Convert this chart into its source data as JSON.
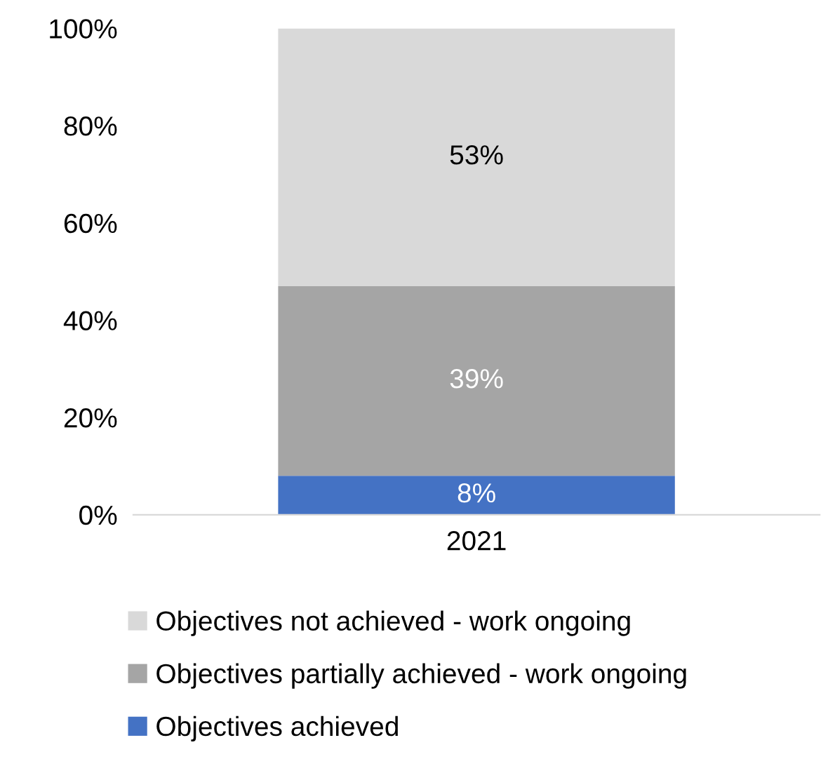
{
  "chart_data": {
    "type": "bar",
    "stacked": true,
    "categories": [
      "2021"
    ],
    "series": [
      {
        "name": "Objectives achieved",
        "color": "#4472c4",
        "values": [
          8
        ],
        "value_labels": [
          "8%"
        ]
      },
      {
        "name": "Objectives partially achieved - work ongoing",
        "color": "#a5a5a5",
        "values": [
          39
        ],
        "value_labels": [
          "39%"
        ]
      },
      {
        "name": "Objectives not achieved - work ongoing",
        "color": "#d9d9d9",
        "values": [
          53
        ],
        "value_labels": [
          "53%"
        ]
      }
    ],
    "ylim": [
      0,
      100
    ],
    "yticks": [
      {
        "value": 0,
        "label": "0%"
      },
      {
        "value": 20,
        "label": "20%"
      },
      {
        "value": 40,
        "label": "40%"
      },
      {
        "value": 60,
        "label": "60%"
      },
      {
        "value": 80,
        "label": "80%"
      },
      {
        "value": 100,
        "label": "100%"
      }
    ],
    "grid": false,
    "legend": "bottom"
  }
}
